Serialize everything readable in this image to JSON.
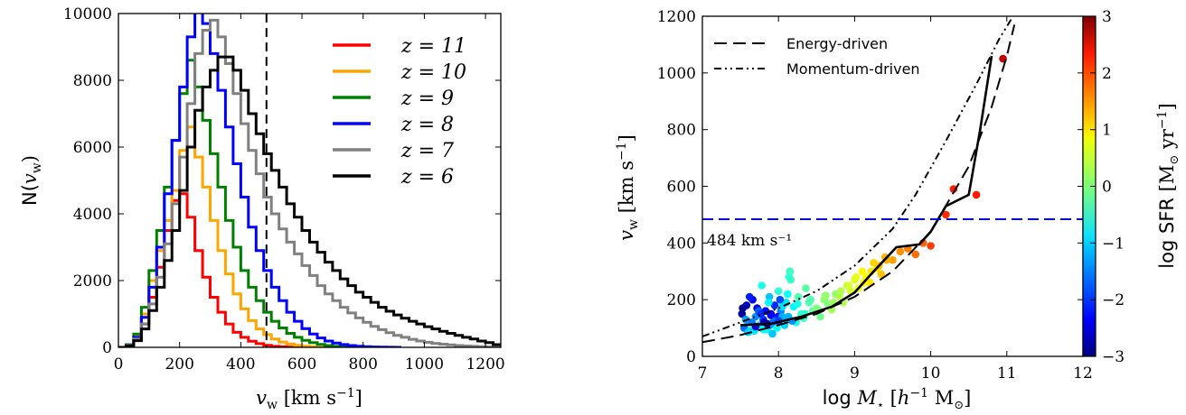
{
  "chart_data": [
    {
      "type": "line",
      "subtype": "step-histogram",
      "xlabel": "v_w [km s^-1]",
      "ylabel": "N(v_w)",
      "xlim": [
        0,
        1250
      ],
      "ylim": [
        0,
        10000
      ],
      "xticks": [
        "0",
        "200",
        "400",
        "600",
        "800",
        "1000",
        "1200"
      ],
      "yticks": [
        "0",
        "2000",
        "4000",
        "6000",
        "8000",
        "10000"
      ],
      "legend_position": "top-right",
      "vline_x": 484,
      "series": [
        {
          "name": "z = 11",
          "color": "#ff0000",
          "x": [
            0,
            25,
            50,
            75,
            100,
            125,
            150,
            175,
            200,
            225,
            250,
            275,
            300,
            325,
            350,
            375,
            400,
            425,
            450,
            475,
            500,
            525,
            550,
            575,
            600
          ],
          "values": [
            0,
            60,
            250,
            700,
            1500,
            2400,
            3500,
            4400,
            4600,
            3900,
            2900,
            2100,
            1500,
            1050,
            700,
            450,
            300,
            180,
            110,
            60,
            30,
            15,
            8,
            3,
            0
          ]
        },
        {
          "name": "z = 10",
          "color": "#ffa500",
          "x": [
            0,
            25,
            50,
            75,
            100,
            125,
            150,
            175,
            200,
            225,
            250,
            275,
            300,
            325,
            350,
            375,
            400,
            425,
            450,
            475,
            500,
            525,
            550,
            575,
            600,
            625,
            650,
            675,
            700
          ],
          "values": [
            0,
            80,
            350,
            1000,
            2000,
            2900,
            3800,
            4700,
            5900,
            6600,
            5700,
            4800,
            3800,
            2900,
            2200,
            1600,
            1150,
            800,
            550,
            380,
            250,
            160,
            100,
            60,
            35,
            20,
            10,
            5,
            0
          ]
        },
        {
          "name": "z = 9",
          "color": "#008000",
          "x": [
            0,
            25,
            50,
            75,
            100,
            125,
            150,
            175,
            200,
            225,
            250,
            275,
            300,
            325,
            350,
            375,
            400,
            425,
            450,
            475,
            500,
            525,
            550,
            575,
            600,
            625,
            650,
            675,
            700,
            725,
            750,
            775,
            800
          ],
          "values": [
            0,
            80,
            400,
            1200,
            2300,
            3500,
            4800,
            6200,
            7600,
            8600,
            7800,
            6800,
            5800,
            4800,
            3800,
            3000,
            2300,
            1800,
            1400,
            1050,
            780,
            580,
            420,
            300,
            210,
            140,
            90,
            55,
            30,
            15,
            8,
            3,
            0
          ]
        },
        {
          "name": "z = 8",
          "color": "#0000ff",
          "x": [
            0,
            25,
            50,
            75,
            100,
            125,
            150,
            175,
            200,
            225,
            250,
            275,
            300,
            325,
            350,
            375,
            400,
            425,
            450,
            475,
            500,
            525,
            550,
            575,
            600,
            625,
            650,
            675,
            700,
            725,
            750,
            775,
            800,
            825,
            850,
            875,
            900
          ],
          "values": [
            0,
            60,
            300,
            900,
            1800,
            3000,
            4600,
            6200,
            7800,
            9300,
            10200,
            9700,
            8800,
            7700,
            6600,
            5500,
            4500,
            3600,
            2900,
            2300,
            1800,
            1400,
            1050,
            780,
            560,
            400,
            280,
            190,
            130,
            85,
            55,
            35,
            20,
            12,
            6,
            3,
            0
          ]
        },
        {
          "name": "z = 7",
          "color": "#808080",
          "x": [
            0,
            25,
            50,
            75,
            100,
            125,
            150,
            175,
            200,
            225,
            250,
            275,
            300,
            325,
            350,
            375,
            400,
            425,
            450,
            475,
            500,
            525,
            550,
            575,
            600,
            625,
            650,
            675,
            700,
            725,
            750,
            775,
            800,
            825,
            850,
            875,
            900,
            925,
            950,
            975,
            1000,
            1025,
            1050,
            1075,
            1100,
            1125,
            1150,
            1175,
            1200,
            1225
          ],
          "values": [
            0,
            50,
            250,
            700,
            1300,
            2100,
            3100,
            4300,
            5700,
            7300,
            8800,
            9500,
            9800,
            9300,
            8500,
            7600,
            6700,
            5900,
            5200,
            4500,
            4000,
            3550,
            3150,
            2800,
            2450,
            2150,
            1850,
            1600,
            1400,
            1200,
            1030,
            880,
            750,
            630,
            530,
            440,
            360,
            300,
            240,
            190,
            150,
            120,
            95,
            75,
            55,
            40,
            30,
            20,
            12,
            6
          ]
        },
        {
          "name": "z = 6",
          "color": "#000000",
          "x": [
            0,
            25,
            50,
            75,
            100,
            125,
            150,
            175,
            200,
            225,
            250,
            275,
            300,
            325,
            350,
            375,
            400,
            425,
            450,
            475,
            500,
            525,
            550,
            575,
            600,
            625,
            650,
            675,
            700,
            725,
            750,
            775,
            800,
            825,
            850,
            875,
            900,
            925,
            950,
            975,
            1000,
            1025,
            1050,
            1075,
            1100,
            1125,
            1150,
            1175,
            1200,
            1225
          ],
          "values": [
            0,
            40,
            200,
            550,
            1100,
            1800,
            2600,
            3500,
            4700,
            6000,
            7100,
            7800,
            8300,
            8700,
            8700,
            8300,
            7700,
            7000,
            6400,
            5800,
            5300,
            4800,
            4300,
            3900,
            3500,
            3150,
            2850,
            2550,
            2300,
            2050,
            1850,
            1650,
            1500,
            1350,
            1200,
            1080,
            970,
            870,
            780,
            700,
            620,
            550,
            480,
            420,
            360,
            300,
            250,
            190,
            140,
            80
          ]
        }
      ]
    },
    {
      "type": "scatter",
      "xlabel": "log M* [h^-1 M_sun]",
      "ylabel": "v_w [km s^-1]",
      "colorbar_label": "log SFR [M_sun yr^-1]",
      "xlim": [
        7,
        12
      ],
      "ylim": [
        0,
        1200
      ],
      "clim": [
        -3,
        3
      ],
      "xticks": [
        "7",
        "8",
        "9",
        "10",
        "11",
        "12"
      ],
      "yticks": [
        "0",
        "200",
        "400",
        "600",
        "800",
        "1000",
        "1200"
      ],
      "cticks": [
        "−3",
        "−2",
        "−1",
        "0",
        "1",
        "2",
        "3"
      ],
      "hline_y": 484,
      "hline_label": "484  km s⁻¹",
      "legend_position": "top-left",
      "legend": [
        "Energy-driven",
        "Momentum-driven"
      ],
      "median_line": {
        "x": [
          7.5,
          7.9,
          8.3,
          8.7,
          9.0,
          9.25,
          9.55,
          9.85,
          10.0,
          10.2,
          10.5,
          10.65,
          10.8
        ],
        "y": [
          110,
          115,
          140,
          175,
          225,
          300,
          385,
          395,
          440,
          530,
          570,
          800,
          1060
        ]
      },
      "energy_curve": {
        "x": [
          7.0,
          7.5,
          8.0,
          8.5,
          9.0,
          9.5,
          10.0,
          10.5,
          10.8,
          11.0,
          11.1
        ],
        "y": [
          50,
          75,
          110,
          150,
          210,
          300,
          440,
          670,
          880,
          1060,
          1170
        ]
      },
      "momentum_curve": {
        "x": [
          7.0,
          7.5,
          8.0,
          8.5,
          9.0,
          9.5,
          9.8,
          10.2,
          10.6,
          10.9,
          11.15
        ],
        "y": [
          70,
          120,
          170,
          230,
          320,
          450,
          570,
          760,
          960,
          1120,
          1230
        ]
      },
      "points": {
        "x": [
          7.52,
          7.55,
          7.58,
          7.6,
          7.63,
          7.66,
          7.7,
          7.72,
          7.75,
          7.78,
          7.8,
          7.83,
          7.85,
          7.88,
          7.9,
          7.93,
          7.95,
          7.98,
          8.0,
          8.03,
          8.06,
          8.08,
          8.1,
          8.13,
          8.16,
          8.2,
          8.23,
          8.26,
          8.3,
          8.33,
          8.36,
          8.4,
          8.45,
          8.5,
          8.55,
          8.6,
          8.65,
          8.7,
          8.75,
          8.8,
          8.85,
          8.9,
          8.95,
          9.0,
          9.05,
          9.1,
          9.15,
          9.2,
          9.25,
          9.3,
          9.35,
          9.4,
          9.5,
          9.6,
          9.7,
          9.8,
          9.9,
          10.0,
          10.2,
          10.3,
          10.6,
          10.95,
          7.57,
          7.62,
          7.68,
          7.74,
          7.81,
          7.87,
          7.92,
          7.99,
          8.05,
          8.12,
          8.18,
          8.25,
          8.35,
          8.42,
          8.52,
          8.62,
          8.72,
          8.82,
          8.92,
          9.02,
          9.12,
          9.22,
          9.32,
          9.42,
          7.53,
          7.65,
          7.77,
          7.89,
          8.02,
          8.14,
          7.6,
          7.7,
          7.8,
          7.95,
          8.05,
          8.15,
          7.9,
          8.0,
          7.85
        ],
        "y": [
          150,
          100,
          180,
          120,
          90,
          200,
          140,
          170,
          110,
          250,
          130,
          160,
          95,
          210,
          145,
          120,
          180,
          100,
          230,
          160,
          130,
          110,
          190,
          140,
          270,
          175,
          120,
          210,
          150,
          135,
          240,
          190,
          160,
          170,
          140,
          200,
          185,
          165,
          220,
          210,
          190,
          250,
          230,
          270,
          240,
          300,
          280,
          260,
          330,
          310,
          290,
          350,
          340,
          370,
          380,
          360,
          400,
          390,
          500,
          590,
          570,
          1050,
          130,
          210,
          90,
          160,
          120,
          190,
          80,
          140,
          175,
          220,
          125,
          185,
          150,
          200,
          165,
          215,
          190,
          230,
          250,
          280,
          260,
          300,
          320,
          340,
          170,
          120,
          150,
          110,
          200,
          280,
          85,
          105,
          95,
          125,
          140,
          300,
          150,
          125,
          115
        ],
        "c": [
          -2.8,
          -1.6,
          -2.6,
          -1.2,
          -0.9,
          -2.3,
          -1.4,
          -2.5,
          -1.0,
          -0.6,
          -1.9,
          -2.2,
          -0.8,
          -1.1,
          -2.4,
          -1.7,
          -2.0,
          -0.7,
          -0.5,
          -1.5,
          -1.8,
          -1.0,
          -0.9,
          -1.2,
          -0.4,
          -0.8,
          -0.6,
          -0.3,
          -0.5,
          -0.4,
          -0.2,
          -0.3,
          -0.2,
          0.0,
          -0.1,
          0.1,
          0.0,
          0.2,
          0.1,
          0.3,
          0.3,
          0.4,
          0.5,
          0.6,
          0.7,
          0.8,
          0.7,
          0.9,
          1.0,
          0.9,
          1.1,
          1.2,
          1.3,
          1.4,
          1.5,
          1.6,
          1.7,
          1.9,
          2.0,
          2.1,
          2.1,
          2.6,
          -1.3,
          -2.1,
          -0.9,
          -1.7,
          -2.7,
          -0.8,
          -1.1,
          -2.2,
          -0.9,
          -0.7,
          -1.4,
          -0.6,
          -0.5,
          -0.3,
          0.0,
          0.1,
          0.2,
          0.3,
          0.5,
          0.6,
          0.8,
          0.9,
          1.1,
          1.2,
          -2.9,
          -1.5,
          -2.0,
          -1.3,
          -1.8,
          -0.5,
          -1.0,
          -2.5,
          -0.7,
          -1.6,
          -1.2,
          -0.4,
          -2.3,
          -1.9,
          -2.8
        ]
      }
    }
  ]
}
